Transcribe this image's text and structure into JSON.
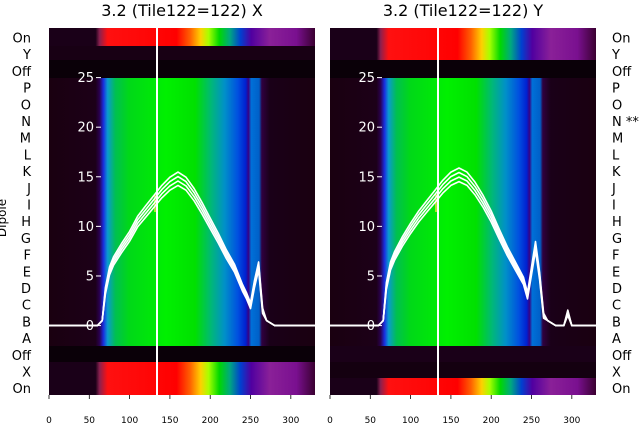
{
  "chart_data": [
    {
      "type": "heatmap",
      "title": "3.2 (Tile122=122) X",
      "ylabel": "Dipole",
      "dipole_labels": [
        "On",
        "Y",
        "Off",
        "P",
        "O",
        "N",
        "M",
        "L",
        "K",
        "J",
        "I",
        "H",
        "G",
        "F",
        "E",
        "D",
        "C",
        "B",
        "A",
        "Off",
        "X",
        "On"
      ],
      "x_ticks": [
        0,
        50,
        100,
        150,
        200,
        250,
        300
      ],
      "xlim": [
        0,
        330
      ],
      "overlay_y_ticks": [
        0,
        5,
        10,
        15,
        20,
        25
      ],
      "overlay_ylim": [
        -7,
        30
      ],
      "overlay_line": {
        "x": [
          0,
          60,
          66,
          70,
          75,
          80,
          90,
          100,
          110,
          120,
          130,
          140,
          150,
          160,
          170,
          180,
          190,
          200,
          210,
          220,
          230,
          240,
          245,
          250,
          255,
          260,
          265,
          270,
          280,
          290,
          300,
          310,
          330
        ],
        "y": [
          0,
          0,
          0.5,
          3.5,
          5.5,
          6.5,
          7.8,
          9,
          10.5,
          11.5,
          12.5,
          13.5,
          14.3,
          14.8,
          14.3,
          13.2,
          11.8,
          10.3,
          8.8,
          7.2,
          5.8,
          3.8,
          3,
          2,
          4.2,
          6,
          1.5,
          0.5,
          0,
          0,
          0,
          0,
          0
        ]
      },
      "spike_x": 133
    },
    {
      "type": "heatmap",
      "title": "3.2 (Tile122=122) Y",
      "dipole_labels": [
        "On",
        "Y",
        "Off",
        "P",
        "O",
        "N **",
        "M",
        "L",
        "K",
        "J",
        "I",
        "H",
        "G",
        "F",
        "E",
        "D",
        "C",
        "B",
        "A",
        "Off",
        "X",
        "On"
      ],
      "x_ticks": [
        0,
        50,
        100,
        150,
        200,
        250,
        300
      ],
      "xlim": [
        0,
        330
      ],
      "overlay_y_ticks": [
        0,
        5,
        10,
        15,
        20,
        25
      ],
      "overlay_ylim": [
        -7,
        30
      ],
      "overlay_line": {
        "x": [
          0,
          60,
          66,
          70,
          75,
          80,
          90,
          100,
          110,
          120,
          130,
          140,
          150,
          160,
          170,
          180,
          190,
          200,
          210,
          220,
          230,
          240,
          245,
          250,
          255,
          260,
          265,
          270,
          280,
          290,
          295,
          300,
          330
        ],
        "y": [
          0,
          0,
          0.5,
          4,
          6,
          7,
          8.5,
          9.8,
          11,
          12,
          13,
          14,
          14.8,
          15.2,
          14.8,
          13.8,
          12.5,
          11,
          9.2,
          7.5,
          6,
          4.5,
          3,
          5.5,
          8,
          5,
          1,
          0.5,
          0,
          0,
          1.3,
          0,
          0
        ]
      },
      "spike_x": 133
    }
  ]
}
